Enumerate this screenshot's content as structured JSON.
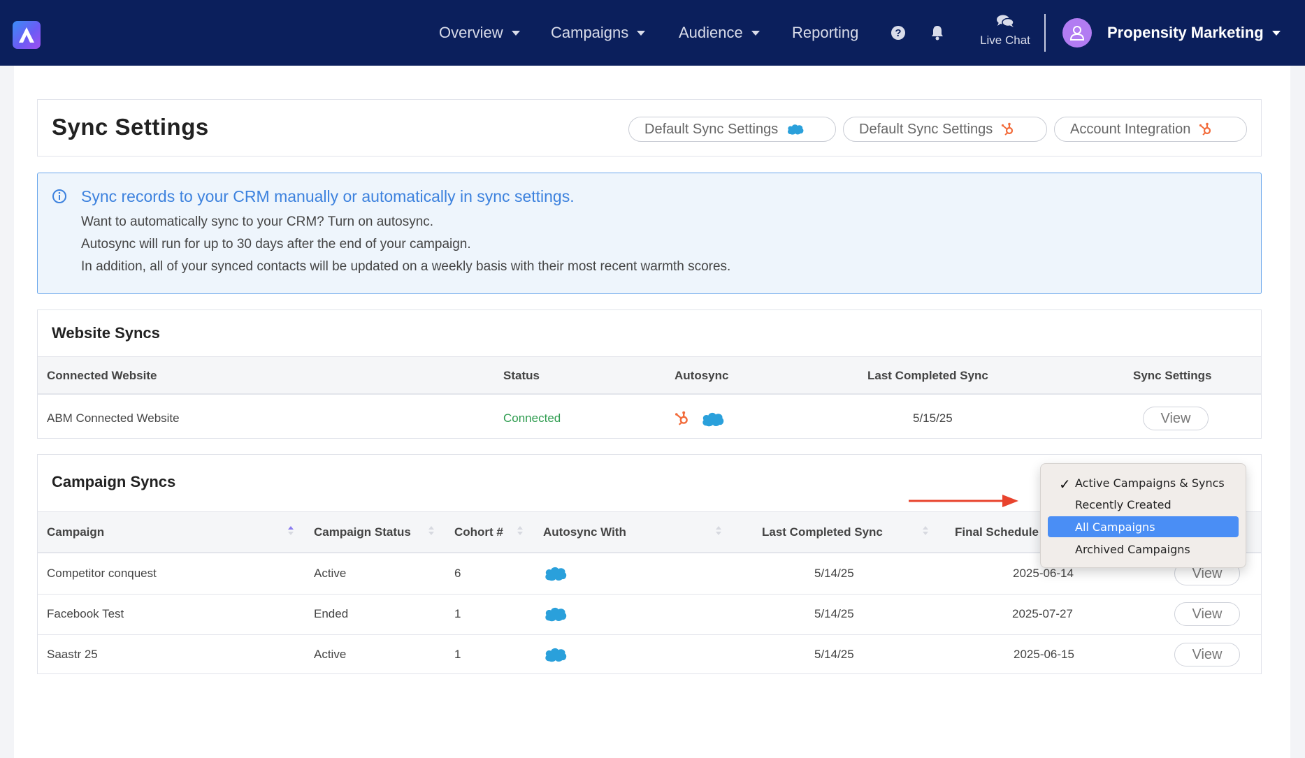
{
  "navbar": {
    "items": [
      {
        "label": "Overview"
      },
      {
        "label": "Campaigns"
      },
      {
        "label": "Audience"
      },
      {
        "label": "Reporting"
      }
    ],
    "live_chat_label": "Live Chat",
    "account_name": "Propensity Marketing"
  },
  "header": {
    "title": "Sync Settings",
    "buttons": [
      {
        "label": "Default Sync Settings",
        "icon": "salesforce-icon"
      },
      {
        "label": "Default Sync Settings",
        "icon": "hubspot-icon"
      },
      {
        "label": "Account Integration",
        "icon": "hubspot-icon"
      }
    ]
  },
  "info": {
    "title": "Sync records to your CRM manually or automatically in sync settings.",
    "lines": [
      "Want to automatically sync to your CRM? Turn on autosync.",
      "Autosync will run for up to 30 days after the end of your campaign.",
      "In addition, all of your synced contacts will be updated on a weekly basis with their most recent warmth scores."
    ]
  },
  "website_syncs": {
    "title": "Website Syncs",
    "columns": [
      "Connected Website",
      "Status",
      "Autosync",
      "Last Completed Sync",
      "Sync Settings"
    ],
    "rows": [
      {
        "website": "ABM Connected Website",
        "status": "Connected",
        "last_sync": "5/15/25",
        "action": "View"
      }
    ]
  },
  "campaign_syncs": {
    "title": "Campaign Syncs",
    "columns": [
      "Campaign",
      "Campaign Status",
      "Cohort #",
      "Autosync With",
      "Last Completed Sync",
      "Final Schedule"
    ],
    "rows": [
      {
        "campaign": "Competitor conquest",
        "status": "Active",
        "cohort": "6",
        "last_sync": "5/14/25",
        "final": "2025-06-14",
        "action": "View"
      },
      {
        "campaign": "Facebook Test",
        "status": "Ended",
        "cohort": "1",
        "last_sync": "5/14/25",
        "final": "2025-07-27",
        "action": "View"
      },
      {
        "campaign": "Saastr 25",
        "status": "Active",
        "cohort": "1",
        "last_sync": "5/14/25",
        "final": "2025-06-15",
        "action": "View"
      }
    ]
  },
  "filter_dropdown": {
    "options": [
      "Active Campaigns & Syncs",
      "Recently Created",
      "All Campaigns",
      "Archived Campaigns"
    ],
    "checked": "Active Campaigns & Syncs",
    "highlighted": "All Campaigns"
  },
  "colors": {
    "navbar": "#0b1f5c",
    "connected": "#2e9c4f",
    "info_title": "#3d82de",
    "highlight": "#4a8ef5",
    "annotation_arrow": "#e8432d"
  }
}
